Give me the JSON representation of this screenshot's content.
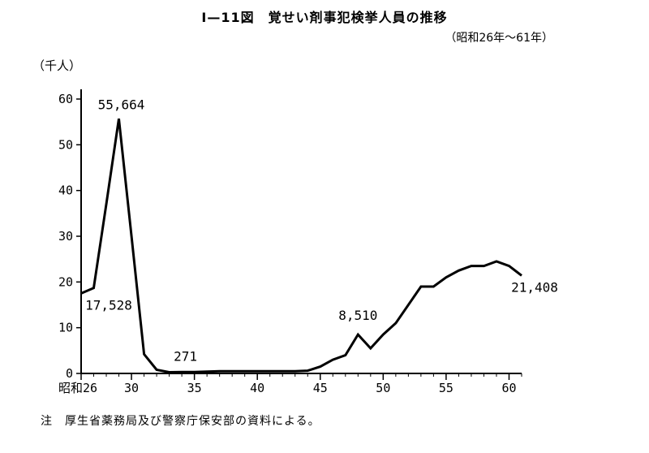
{
  "title": "Ⅰ—11図　覚せい剤事犯検挙人員の推移",
  "subtitle": "（昭和26年〜61年）",
  "note": "注　厚生省薬務局及び警察庁保安部の資料による。",
  "chart_data": {
    "type": "line",
    "title": "Ⅰ—11図　覚せい剤事犯検挙人員の推移",
    "subtitle": "（昭和26年〜61年）",
    "ylabel": "（千人）",
    "xlabel": "",
    "xlim": [
      26,
      61
    ],
    "ylim": [
      0,
      60
    ],
    "x_ticks": [
      {
        "value": 26,
        "label": "昭和26"
      },
      {
        "value": 30,
        "label": "30"
      },
      {
        "value": 35,
        "label": "35"
      },
      {
        "value": 40,
        "label": "40"
      },
      {
        "value": 45,
        "label": "45"
      },
      {
        "value": 50,
        "label": "50"
      },
      {
        "value": 55,
        "label": "55"
      },
      {
        "value": 60,
        "label": "60"
      }
    ],
    "y_ticks": [
      0,
      10,
      20,
      30,
      40,
      50,
      60
    ],
    "grid": false,
    "legend": "none",
    "series": [
      {
        "color": "#000000",
        "x": [
          26,
          27,
          28,
          29,
          30,
          31,
          32,
          33,
          34,
          35,
          36,
          37,
          38,
          39,
          40,
          41,
          42,
          43,
          44,
          45,
          46,
          47,
          48,
          49,
          50,
          51,
          52,
          53,
          54,
          55,
          56,
          57,
          58,
          59,
          60,
          61
        ],
        "y": [
          17.5,
          18.7,
          37.0,
          55.7,
          30.0,
          4.2,
          0.8,
          0.271,
          0.3,
          0.3,
          0.4,
          0.5,
          0.5,
          0.5,
          0.5,
          0.5,
          0.5,
          0.5,
          0.6,
          1.5,
          3.0,
          4.0,
          8.5,
          5.5,
          8.5,
          11.0,
          15.0,
          19.0,
          19.0,
          21.0,
          22.5,
          23.5,
          23.5,
          24.5,
          23.5,
          21.4
        ]
      }
    ],
    "annotations": [
      {
        "text": "55,664",
        "x": 29,
        "y": 55.664
      },
      {
        "text": "17,528",
        "x": 26,
        "y": 17.528
      },
      {
        "text": "271",
        "x": 33,
        "y": 0.271
      },
      {
        "text": "8,510",
        "x": 48,
        "y": 8.51
      },
      {
        "text": "21,408",
        "x": 61,
        "y": 21.408
      }
    ]
  }
}
